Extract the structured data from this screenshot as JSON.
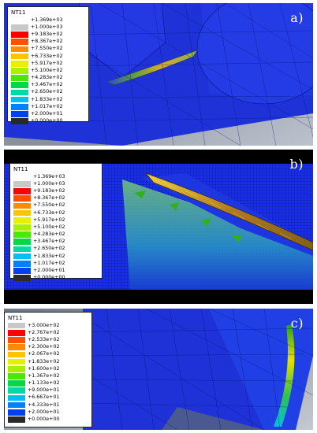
{
  "panels": {
    "a": {
      "label": "a)",
      "legend_title": "NT11",
      "legend_values": [
        "+1.369e+03",
        "+1.000e+03",
        "+9.183e+02",
        "+8.367e+02",
        "+7.550e+02",
        "+6.733e+02",
        "+5.917e+02",
        "+5.100e+02",
        "+4.283e+02",
        "+3.467e+02",
        "+2.650e+02",
        "+1.833e+02",
        "+1.017e+02",
        "+2.000e+01",
        "+0.000e+00"
      ]
    },
    "b": {
      "label": "b)",
      "legend_title": "NT11",
      "legend_values": [
        "+1.369e+03",
        "+1.000e+03",
        "+9.183e+02",
        "+8.367e+02",
        "+7.550e+02",
        "+6.733e+02",
        "+5.917e+02",
        "+5.100e+02",
        "+4.283e+02",
        "+3.467e+02",
        "+2.650e+02",
        "+1.833e+02",
        "+1.017e+02",
        "+2.000e+01",
        "+0.000e+00"
      ]
    },
    "c": {
      "label": "c)",
      "legend_title": "NT11",
      "legend_values": [
        "+3.000e+02",
        "+2.767e+02",
        "+2.533e+02",
        "+2.300e+02",
        "+2.067e+02",
        "+1.833e+02",
        "+1.600e+02",
        "+1.367e+02",
        "+1.133e+02",
        "+9.000e+01",
        "+6.667e+01",
        "+4.333e+01",
        "+2.000e+01",
        "+0.000e+00"
      ]
    }
  },
  "colors": {
    "legend_scale": [
      "#c8c8c8",
      "#ff0000",
      "#ff4f00",
      "#ff8c00",
      "#ffc400",
      "#e8f000",
      "#a8f000",
      "#4ae800",
      "#00d84a",
      "#00d8a8",
      "#00c0f0",
      "#0080ff",
      "#0040f0",
      "#101070",
      "#2a2a2a"
    ],
    "mesh_blue": "#1a2fe0",
    "mesh_line": "#0a1480",
    "background_gray": "#9aa0ab"
  }
}
